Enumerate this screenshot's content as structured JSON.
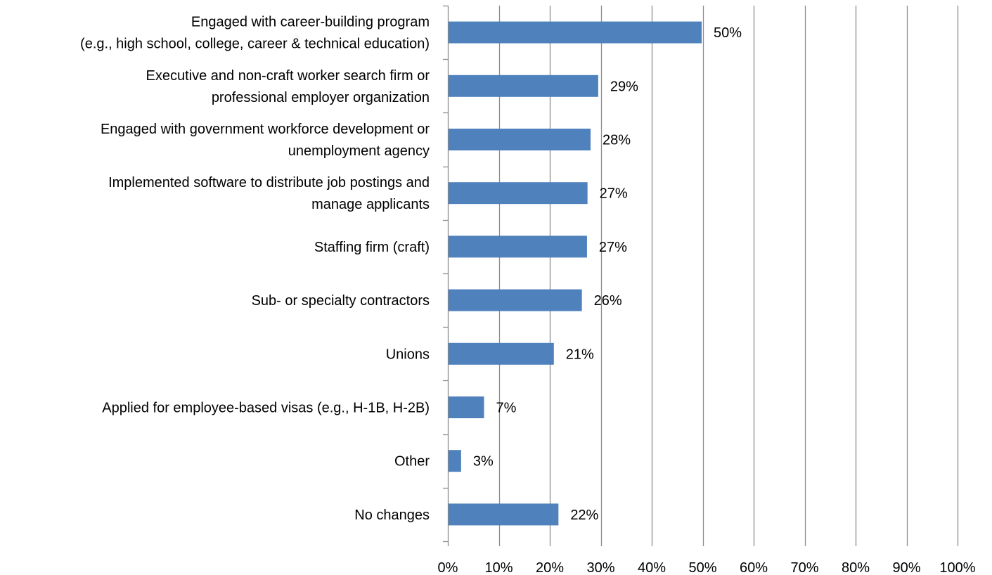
{
  "chart_data": {
    "type": "bar",
    "orientation": "horizontal",
    "title": "",
    "xlabel": "",
    "ylabel": "",
    "categories": [
      [
        "Engaged with career-building program",
        "(e.g., high school, college, career & technical education)"
      ],
      [
        "Executive and non-craft worker search firm or",
        "professional employer organization"
      ],
      [
        "Engaged with government workforce development or",
        "unemployment agency"
      ],
      [
        "Implemented software to distribute job postings and",
        "manage applicants"
      ],
      [
        "Staffing firm (craft)"
      ],
      [
        "Sub- or specialty contractors"
      ],
      [
        "Unions"
      ],
      [
        "Applied for employee-based visas (e.g., H-1B, H-2B)"
      ],
      [
        "Other"
      ],
      [
        "No changes"
      ]
    ],
    "values": [
      49.8,
      29.5,
      28.0,
      27.4,
      27.3,
      26.3,
      20.8,
      7.1,
      2.6,
      21.7
    ],
    "value_labels": [
      "50%",
      "29%",
      "28%",
      "27%",
      "27%",
      "26%",
      "21%",
      "7%",
      "3%",
      "22%"
    ],
    "xlim": [
      0,
      100
    ],
    "x_ticks": [
      0,
      10,
      20,
      30,
      40,
      50,
      60,
      70,
      80,
      90,
      100
    ],
    "x_tick_labels": [
      "0%",
      "10%",
      "20%",
      "30%",
      "40%",
      "50%",
      "60%",
      "70%",
      "80%",
      "90%",
      "100%"
    ],
    "grid": "vertical",
    "legend": "none",
    "colors": {
      "bar": "#4F81BD",
      "grid": "#8C8C8C",
      "axis": "#8C8C8C",
      "text": "#000000"
    }
  }
}
